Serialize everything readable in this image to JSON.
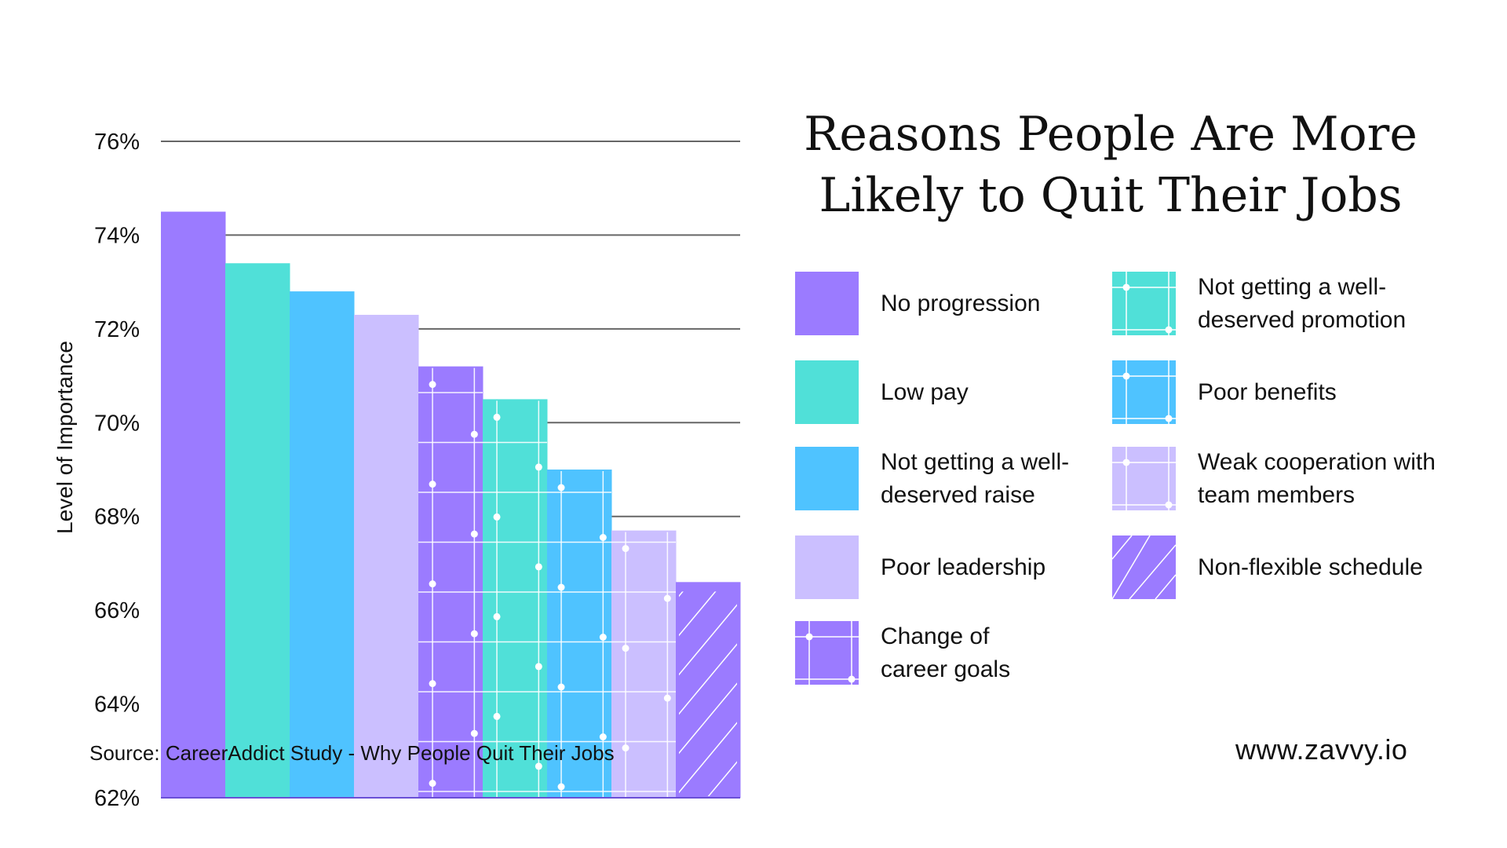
{
  "title": "Reasons People Are More Likely to Quit Their Jobs",
  "source": "Source: CareerAddict Study - Why People Quit Their Jobs",
  "website": "www.zavvy.io",
  "chart_data": {
    "type": "bar",
    "title": "Reasons People Are More Likely to Quit Their Jobs",
    "xlabel": "",
    "ylabel": "Level of Importance",
    "ylim": [
      62,
      76
    ],
    "yticks": [
      62,
      64,
      66,
      68,
      70,
      72,
      74,
      76
    ],
    "ytick_labels": [
      "62%",
      "64%",
      "66%",
      "68%",
      "70%",
      "72%",
      "74%",
      "76%"
    ],
    "grid": true,
    "legend_position": "right",
    "categories": [
      "No progression",
      "Low pay",
      "Not getting a well-deserved raise",
      "Poor leadership",
      "Change of career goals",
      "Not getting a well-deserved promotion",
      "Poor benefits",
      "Weak cooperation with team members",
      "Non-flexible schedule"
    ],
    "values": [
      74.5,
      73.4,
      72.8,
      72.3,
      71.2,
      70.5,
      69.0,
      67.7,
      66.6
    ],
    "colors": [
      "#9b7bff",
      "#50e0d8",
      "#4fc3ff",
      "#cbbfff",
      "#9b7bff",
      "#50e0d8",
      "#4fc3ff",
      "#cbbfff",
      "#9b7bff"
    ],
    "patterns": [
      "solid",
      "solid",
      "solid",
      "solid",
      "grid-dots",
      "grid-dots",
      "grid-dots",
      "grid-dots",
      "diagonal-hatch"
    ]
  },
  "legend": [
    {
      "label": "No progression",
      "lines": [
        "No progression"
      ]
    },
    {
      "label": "Low pay",
      "lines": [
        "Low pay"
      ]
    },
    {
      "label": "Not getting a well-deserved raise",
      "lines": [
        "Not getting a well-",
        "deserved raise"
      ]
    },
    {
      "label": "Poor leadership",
      "lines": [
        "Poor leadership"
      ]
    },
    {
      "label": "Change of career goals",
      "lines": [
        "Change of",
        "career goals"
      ]
    },
    {
      "label": "Not getting a well-deserved promotion",
      "lines": [
        "Not getting a well-",
        "deserved promotion"
      ]
    },
    {
      "label": "Poor benefits",
      "lines": [
        "Poor benefits"
      ]
    },
    {
      "label": "Weak cooperation with team members",
      "lines": [
        "Weak cooperation with",
        "team members"
      ]
    },
    {
      "label": "Non-flexible schedule",
      "lines": [
        "Non-flexible schedule"
      ]
    }
  ]
}
